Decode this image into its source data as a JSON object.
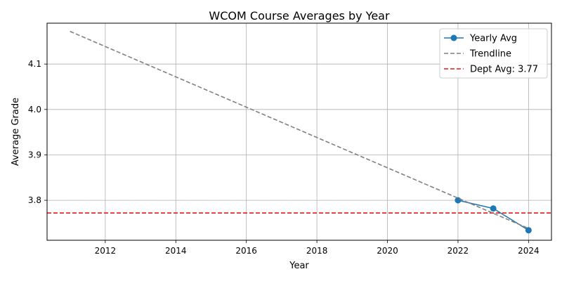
{
  "chart_data": {
    "type": "line",
    "title": "WCOM Course Averages by Year",
    "xlabel": "Year",
    "ylabel": "Average Grade",
    "xlim": [
      2010.35,
      2024.65
    ],
    "ylim": [
      3.712,
      4.19
    ],
    "x_ticks": [
      2012,
      2014,
      2016,
      2018,
      2020,
      2022,
      2024
    ],
    "y_ticks": [
      3.8,
      3.9,
      4.0,
      4.1
    ],
    "grid": true,
    "legend_position": "top-right",
    "series": [
      {
        "name": "Yearly Avg",
        "style": "solid-markers",
        "color": "#1f77b4",
        "x": [
          2022,
          2023,
          2024
        ],
        "y": [
          3.8,
          3.782,
          3.734
        ]
      },
      {
        "name": "Trendline",
        "style": "dashed",
        "color": "#808080",
        "x": [
          2011,
          2024
        ],
        "y": [
          4.172,
          3.738
        ]
      }
    ],
    "reference_lines": [
      {
        "name": "Dept Avg: 3.77",
        "value": 3.772,
        "orientation": "horizontal",
        "style": "dashed",
        "color": "#e8181b"
      }
    ]
  }
}
